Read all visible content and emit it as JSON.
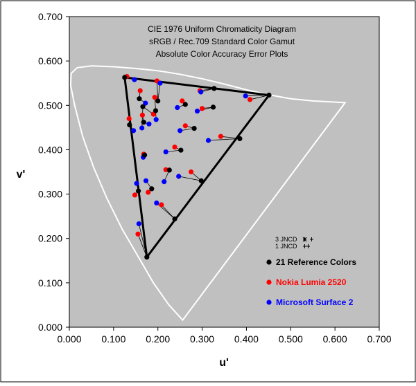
{
  "chart_data": {
    "type": "scatter",
    "title_lines": [
      "CIE 1976 Uniform Chromaticity Diagram",
      "sRGB / Rec.709 Standard Color Gamut",
      "Absolute Color Accuracy Error Plots"
    ],
    "xlabel": "u'",
    "ylabel": "v'",
    "xlim": [
      0.0,
      0.7
    ],
    "ylim": [
      0.0,
      0.7
    ],
    "x_ticks": [
      "0.000",
      "0.100",
      "0.200",
      "0.300",
      "0.400",
      "0.500",
      "0.600",
      "0.700"
    ],
    "y_ticks": [
      "0.000",
      "0.100",
      "0.200",
      "0.300",
      "0.400",
      "0.500",
      "0.600",
      "0.700"
    ],
    "x_tick_values": [
      0,
      0.1,
      0.2,
      0.3,
      0.4,
      0.5,
      0.6,
      0.7
    ],
    "y_tick_values": [
      0,
      0.1,
      0.2,
      0.3,
      0.4,
      0.5,
      0.6,
      0.7
    ],
    "grid": false,
    "plot_background": "#c0c0c0",
    "spectral_locus_color": "#ffffff",
    "spectral_locus": [
      [
        0.256,
        0.016
      ],
      [
        0.225,
        0.05
      ],
      [
        0.19,
        0.1
      ],
      [
        0.155,
        0.16
      ],
      [
        0.12,
        0.22
      ],
      [
        0.085,
        0.29
      ],
      [
        0.055,
        0.36
      ],
      [
        0.03,
        0.43
      ],
      [
        0.012,
        0.5
      ],
      [
        0.003,
        0.545
      ],
      [
        0.004,
        0.572
      ],
      [
        0.018,
        0.585
      ],
      [
        0.05,
        0.589
      ],
      [
        0.1,
        0.587
      ],
      [
        0.15,
        0.583
      ],
      [
        0.2,
        0.578
      ],
      [
        0.25,
        0.57
      ],
      [
        0.3,
        0.56
      ],
      [
        0.35,
        0.548
      ],
      [
        0.4,
        0.535
      ],
      [
        0.45,
        0.524
      ],
      [
        0.5,
        0.515
      ],
      [
        0.55,
        0.51
      ],
      [
        0.623,
        0.506
      ]
    ],
    "gamut_triangle": [
      [
        0.451,
        0.523
      ],
      [
        0.125,
        0.563
      ],
      [
        0.175,
        0.158
      ]
    ],
    "legend": {
      "jncd_3": "3 JNCD",
      "jncd_1": "1 JNCD",
      "position": "bottom-right"
    },
    "series": [
      {
        "name": "21 Reference Colors",
        "color": "#000000",
        "points": [
          [
            0.451,
            0.523
          ],
          [
            0.125,
            0.563
          ],
          [
            0.175,
            0.158
          ],
          [
            0.327,
            0.538
          ],
          [
            0.2,
            0.51
          ],
          [
            0.156,
            0.307
          ],
          [
            0.238,
            0.244
          ],
          [
            0.298,
            0.33
          ],
          [
            0.385,
            0.425
          ],
          [
            0.325,
            0.496
          ],
          [
            0.282,
            0.448
          ],
          [
            0.158,
            0.515
          ],
          [
            0.226,
            0.354
          ],
          [
            0.195,
            0.488
          ],
          [
            0.168,
            0.462
          ],
          [
            0.136,
            0.456
          ],
          [
            0.17,
            0.388
          ],
          [
            0.186,
            0.312
          ],
          [
            0.252,
            0.399
          ],
          [
            0.262,
            0.502
          ],
          [
            0.166,
            0.497
          ]
        ]
      },
      {
        "name": "Nokia Lumia 2520",
        "color": "#ff0000",
        "points": [
          [
            0.408,
            0.513
          ],
          [
            0.13,
            0.565
          ],
          [
            0.155,
            0.21
          ],
          [
            0.295,
            0.533
          ],
          [
            0.198,
            0.555
          ],
          [
            0.148,
            0.298
          ],
          [
            0.208,
            0.276
          ],
          [
            0.275,
            0.35
          ],
          [
            0.342,
            0.43
          ],
          [
            0.3,
            0.493
          ],
          [
            0.262,
            0.454
          ],
          [
            0.16,
            0.533
          ],
          [
            0.218,
            0.355
          ],
          [
            0.193,
            0.518
          ],
          [
            0.165,
            0.478
          ],
          [
            0.135,
            0.47
          ],
          [
            0.168,
            0.39
          ],
          [
            0.178,
            0.304
          ],
          [
            0.238,
            0.406
          ],
          [
            0.255,
            0.51
          ],
          [
            0.19,
            0.48
          ]
        ]
      },
      {
        "name": "Microsoft Surface 2",
        "color": "#0000ff",
        "points": [
          [
            0.398,
            0.521
          ],
          [
            0.147,
            0.558
          ],
          [
            0.157,
            0.233
          ],
          [
            0.297,
            0.53
          ],
          [
            0.205,
            0.55
          ],
          [
            0.152,
            0.324
          ],
          [
            0.197,
            0.28
          ],
          [
            0.247,
            0.34
          ],
          [
            0.314,
            0.421
          ],
          [
            0.289,
            0.487
          ],
          [
            0.25,
            0.443
          ],
          [
            0.172,
            0.505
          ],
          [
            0.214,
            0.328
          ],
          [
            0.196,
            0.468
          ],
          [
            0.18,
            0.458
          ],
          [
            0.145,
            0.443
          ],
          [
            0.167,
            0.383
          ],
          [
            0.173,
            0.33
          ],
          [
            0.218,
            0.395
          ],
          [
            0.244,
            0.495
          ],
          [
            0.164,
            0.449
          ]
        ]
      }
    ]
  }
}
